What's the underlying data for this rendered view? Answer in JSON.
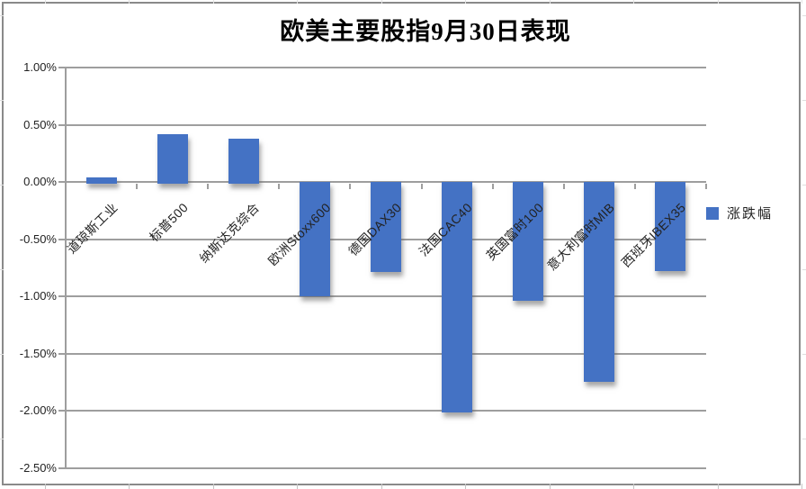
{
  "window": {
    "background": "#ffffff",
    "frame_border_color": "#8a8a8a"
  },
  "chart_data": {
    "type": "bar",
    "title": "欧美主要股指9月30日表现",
    "categories": [
      "道琼斯工业",
      "标普500",
      "纳斯达克综合",
      "欧洲Stoxx600",
      "德国DAX30",
      "法国CAC40",
      "英国富时100",
      "意大利富时MIB",
      "西班牙IBEX35"
    ],
    "series": [
      {
        "name": "涨跌幅",
        "color": "#4472C4",
        "values": [
          0.04,
          0.42,
          0.38,
          -0.98,
          -0.77,
          -2.0,
          -1.02,
          -1.73,
          -0.76
        ]
      }
    ],
    "value_unit": "%",
    "ylim": [
      -2.5,
      1.0
    ],
    "y_ticks": [
      {
        "label": "1.00%",
        "value": 1.0
      },
      {
        "label": "0.50%",
        "value": 0.5
      },
      {
        "label": "0.00%",
        "value": 0.0
      },
      {
        "label": "-0.50%",
        "value": -0.5
      },
      {
        "label": "-1.00%",
        "value": -1.0
      },
      {
        "label": "-1.50%",
        "value": -1.5
      },
      {
        "label": "-2.00%",
        "value": -2.0
      },
      {
        "label": "-2.50%",
        "value": -2.5
      }
    ],
    "grid": true,
    "gridline_color": "#9e9e9e",
    "legend_position": "right",
    "bar_shadow": true
  }
}
